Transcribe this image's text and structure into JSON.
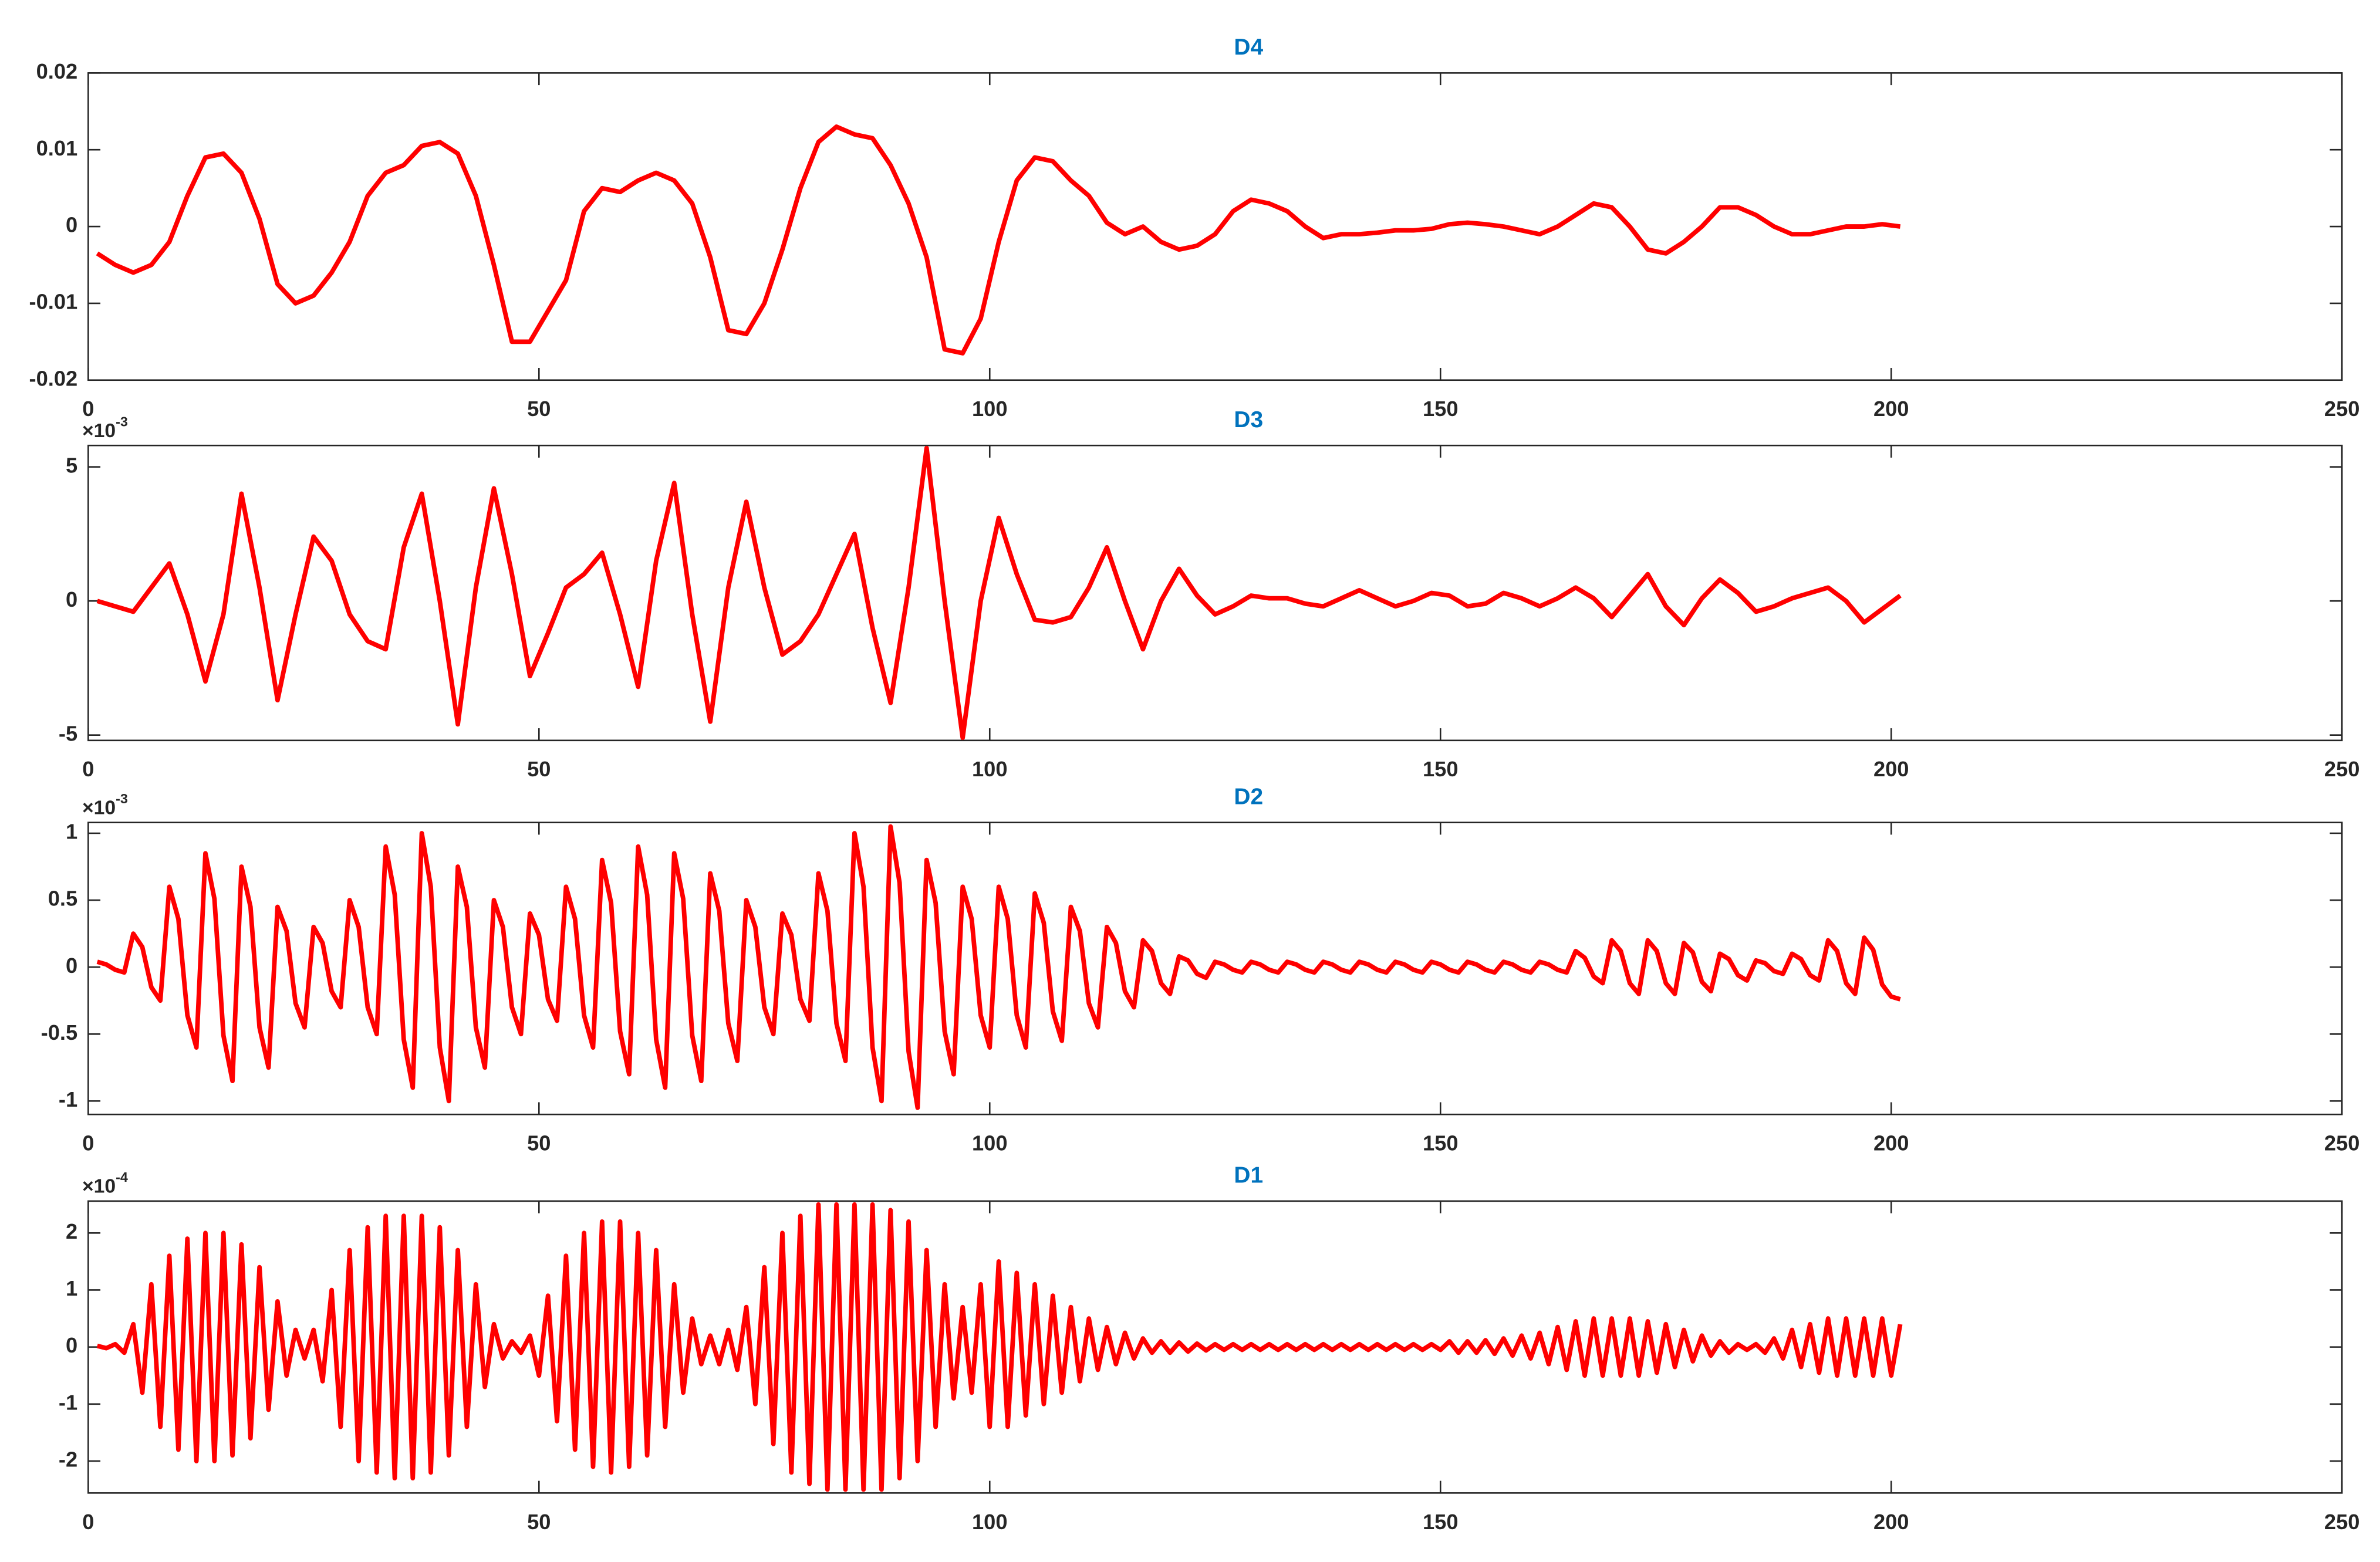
{
  "chart_data": [
    {
      "type": "line",
      "title": "D4",
      "color": "#ff0000",
      "x": [
        1,
        3,
        5,
        7,
        9,
        11,
        13,
        15,
        17,
        19,
        21,
        23,
        25,
        27,
        29,
        31,
        33,
        35,
        37,
        39,
        41,
        43,
        45,
        47,
        49,
        51,
        53,
        55,
        57,
        59,
        61,
        63,
        65,
        67,
        69,
        71,
        73,
        75,
        77,
        79,
        81,
        83,
        85,
        87,
        89,
        91,
        93,
        95,
        97,
        99,
        101,
        103,
        105,
        107,
        109,
        111,
        113,
        115,
        117,
        119,
        121,
        123,
        125,
        127,
        129,
        131,
        133,
        135,
        137,
        139,
        141,
        143,
        145,
        147,
        149,
        151,
        153,
        155,
        157,
        159,
        161,
        163,
        165,
        167,
        169,
        171,
        173,
        175,
        177,
        179,
        181,
        183,
        185,
        187,
        189,
        191,
        193,
        195,
        197,
        199,
        201
      ],
      "values": [
        -0.0035,
        -0.005,
        -0.006,
        -0.005,
        -0.002,
        0.004,
        0.009,
        0.0095,
        0.007,
        0.001,
        -0.0075,
        -0.01,
        -0.009,
        -0.006,
        -0.002,
        0.004,
        0.007,
        0.008,
        0.0105,
        0.011,
        0.0095,
        0.004,
        -0.005,
        -0.015,
        -0.015,
        -0.011,
        -0.007,
        0.002,
        0.005,
        0.0045,
        0.006,
        0.007,
        0.006,
        0.003,
        -0.004,
        -0.0135,
        -0.014,
        -0.01,
        -0.003,
        0.005,
        0.011,
        0.013,
        0.012,
        0.0115,
        0.008,
        0.003,
        -0.004,
        -0.016,
        -0.0165,
        -0.012,
        -0.002,
        0.006,
        0.009,
        0.0085,
        0.006,
        0.004,
        0.0005,
        -0.001,
        0,
        -0.002,
        -0.003,
        -0.0025,
        -0.001,
        0.002,
        0.0035,
        0.003,
        0.002,
        0,
        -0.0015,
        -0.001,
        -0.001,
        -0.0008,
        -0.0005,
        -0.0005,
        -0.0003,
        0.0003,
        0.0005,
        0.0003,
        0,
        -0.0005,
        -0.001,
        0,
        0.0015,
        0.003,
        0.0025,
        0,
        -0.003,
        -0.0035,
        -0.002,
        0,
        0.0025,
        0.0025,
        0.0015,
        0,
        -0.001,
        -0.001,
        -0.0005,
        0,
        0,
        0.0003,
        0
      ],
      "xlim": [
        0,
        250
      ],
      "xticks": [
        0,
        50,
        100,
        150,
        200,
        250
      ],
      "ylim": [
        -0.02,
        0.02
      ],
      "yticks": [
        -0.02,
        -0.01,
        0,
        0.01,
        0.02
      ]
    },
    {
      "type": "line",
      "title": "D3",
      "color": "#ff0000",
      "y_multiplier": {
        "base": "×10",
        "exponent": "-3"
      },
      "x": [
        1,
        3,
        5,
        7,
        9,
        11,
        13,
        15,
        17,
        19,
        21,
        23,
        25,
        27,
        29,
        31,
        33,
        35,
        37,
        39,
        41,
        43,
        45,
        47,
        49,
        51,
        53,
        55,
        57,
        59,
        61,
        63,
        65,
        67,
        69,
        71,
        73,
        75,
        77,
        79,
        81,
        83,
        85,
        87,
        89,
        91,
        93,
        95,
        97,
        99,
        101,
        103,
        105,
        107,
        109,
        111,
        113,
        115,
        117,
        119,
        121,
        123,
        125,
        127,
        129,
        131,
        133,
        135,
        137,
        139,
        141,
        143,
        145,
        147,
        149,
        151,
        153,
        155,
        157,
        159,
        161,
        163,
        165,
        167,
        169,
        171,
        173,
        175,
        177,
        179,
        181,
        183,
        185,
        187,
        189,
        191,
        193,
        195,
        197,
        199,
        201
      ],
      "values": [
        0,
        -0.2,
        -0.4,
        0.5,
        1.4,
        -0.5,
        -3.0,
        -0.5,
        4.0,
        0.5,
        -3.7,
        -0.5,
        2.4,
        1.5,
        -0.5,
        -1.5,
        -1.8,
        2.0,
        4.0,
        0,
        -4.6,
        0.5,
        4.2,
        1.0,
        -2.8,
        -1.2,
        0.5,
        1.0,
        1.8,
        -0.5,
        -3.2,
        1.5,
        4.4,
        -0.5,
        -4.5,
        0.5,
        3.7,
        0.5,
        -2.0,
        -1.5,
        -0.5,
        1.0,
        2.5,
        -1.0,
        -3.8,
        0.5,
        5.7,
        0,
        -5.1,
        0,
        3.1,
        1.0,
        -0.7,
        -0.8,
        -0.6,
        0.5,
        2.0,
        0,
        -1.8,
        0,
        1.2,
        0.2,
        -0.5,
        -0.2,
        0.2,
        0.1,
        0.1,
        -0.1,
        -0.2,
        0.1,
        0.4,
        0.1,
        -0.2,
        0,
        0.3,
        0.2,
        -0.2,
        -0.1,
        0.3,
        0.1,
        -0.2,
        0.1,
        0.5,
        0.1,
        -0.6,
        0.2,
        1.0,
        -0.2,
        -0.9,
        0.1,
        0.8,
        0.3,
        -0.4,
        -0.2,
        0.1,
        0.3,
        0.5,
        0,
        -0.8,
        -0.3,
        0.2
      ],
      "xlim": [
        0,
        250
      ],
      "xticks": [
        0,
        50,
        100,
        150,
        200,
        250
      ],
      "ylim": [
        -5.2,
        5.8
      ],
      "yticks": [
        -5,
        0,
        5
      ]
    },
    {
      "type": "line",
      "title": "D2",
      "color": "#ff0000",
      "y_multiplier": {
        "base": "×10",
        "exponent": "-3"
      },
      "x": [
        1,
        2,
        3,
        4,
        5,
        6,
        7,
        8,
        9,
        10,
        11,
        12,
        13,
        14,
        15,
        16,
        17,
        18,
        19,
        20,
        21,
        22,
        23,
        24,
        25,
        26,
        27,
        28,
        29,
        30,
        31,
        32,
        33,
        34,
        35,
        36,
        37,
        38,
        39,
        40,
        41,
        42,
        43,
        44,
        45,
        46,
        47,
        48,
        49,
        50,
        51,
        52,
        53,
        54,
        55,
        56,
        57,
        58,
        59,
        60,
        61,
        62,
        63,
        64,
        65,
        66,
        67,
        68,
        69,
        70,
        71,
        72,
        73,
        74,
        75,
        76,
        77,
        78,
        79,
        80,
        81,
        82,
        83,
        84,
        85,
        86,
        87,
        88,
        89,
        90,
        91,
        92,
        93,
        94,
        95,
        96,
        97,
        98,
        99,
        100,
        101,
        102,
        103,
        104,
        105,
        106,
        107,
        108,
        109,
        110,
        111,
        112,
        113,
        114,
        115,
        116,
        117,
        118,
        119,
        120,
        121,
        122,
        123,
        124,
        125,
        126,
        127,
        128,
        129,
        130,
        131,
        132,
        133,
        134,
        135,
        136,
        137,
        138,
        139,
        140,
        141,
        142,
        143,
        144,
        145,
        146,
        147,
        148,
        149,
        150,
        151,
        152,
        153,
        154,
        155,
        156,
        157,
        158,
        159,
        160,
        161,
        162,
        163,
        164,
        165,
        166,
        167,
        168,
        169,
        170,
        171,
        172,
        173,
        174,
        175,
        176,
        177,
        178,
        179,
        180,
        181,
        182,
        183,
        184,
        185,
        186,
        187,
        188,
        189,
        190,
        191,
        192,
        193,
        194,
        195,
        196,
        197,
        198,
        199,
        200,
        201
      ],
      "values": [
        0.04,
        0.02,
        -0.02,
        -0.04,
        0.25,
        0.15,
        -0.15,
        -0.25,
        0.6,
        0.36,
        -0.36,
        -0.6,
        0.85,
        0.51,
        -0.51,
        -0.85,
        0.75,
        0.45,
        -0.45,
        -0.75,
        0.45,
        0.27,
        -0.27,
        -0.45,
        0.3,
        0.18,
        -0.18,
        -0.3,
        0.5,
        0.3,
        -0.3,
        -0.5,
        0.9,
        0.54,
        -0.54,
        -0.9,
        1,
        0.6,
        -0.6,
        -1,
        0.75,
        0.45,
        -0.45,
        -0.75,
        0.5,
        0.3,
        -0.3,
        -0.5,
        0.4,
        0.24,
        -0.24,
        -0.4,
        0.6,
        0.36,
        -0.36,
        -0.6,
        0.8,
        0.48,
        -0.48,
        -0.8,
        0.9,
        0.54,
        -0.54,
        -0.9,
        0.85,
        0.51,
        -0.51,
        -0.85,
        0.7,
        0.42,
        -0.42,
        -0.7,
        0.5,
        0.3,
        -0.3,
        -0.5,
        0.4,
        0.24,
        -0.24,
        -0.4,
        0.7,
        0.42,
        -0.42,
        -0.7,
        1,
        0.6,
        -0.6,
        -1,
        1.05,
        0.63,
        -0.63,
        -1.05,
        0.8,
        0.48,
        -0.48,
        -0.8,
        0.6,
        0.36,
        -0.36,
        -0.6,
        0.6,
        0.36,
        -0.36,
        -0.6,
        0.55,
        0.33,
        -0.33,
        -0.55,
        0.45,
        0.27,
        -0.27,
        -0.45,
        0.3,
        0.18,
        -0.18,
        -0.3,
        0.2,
        0.12,
        -0.12,
        -0.2,
        0.08,
        0.05,
        -0.05,
        -0.08,
        0.04,
        0.02,
        -0.02,
        -0.04,
        0.04,
        0.02,
        -0.02,
        -0.04,
        0.04,
        0.02,
        -0.02,
        -0.04,
        0.04,
        0.02,
        -0.02,
        -0.04,
        0.04,
        0.02,
        -0.02,
        -0.04,
        0.04,
        0.02,
        -0.02,
        -0.04,
        0.04,
        0.02,
        -0.02,
        -0.04,
        0.04,
        0.02,
        -0.02,
        -0.04,
        0.04,
        0.02,
        -0.02,
        -0.04,
        0.04,
        0.02,
        -0.02,
        -0.04,
        0.12,
        0.07,
        -0.07,
        -0.12,
        0.2,
        0.12,
        -0.12,
        -0.2,
        0.2,
        0.12,
        -0.12,
        -0.2,
        0.18,
        0.11,
        -0.11,
        -0.18,
        0.1,
        0.06,
        -0.06,
        -0.1,
        0.05,
        0.03,
        -0.03,
        -0.05,
        0.1,
        0.06,
        -0.06,
        -0.1,
        0.2,
        0.12,
        -0.12,
        -0.2,
        0.22,
        0.13,
        -0.13,
        -0.22,
        -0.24
      ],
      "xlim": [
        0,
        250
      ],
      "xticks": [
        0,
        50,
        100,
        150,
        200,
        250
      ],
      "ylim": [
        -1.1,
        1.08
      ],
      "yticks": [
        -1,
        -0.5,
        0,
        0.5,
        1
      ]
    },
    {
      "type": "line",
      "title": "D1",
      "color": "#ff0000",
      "y_multiplier": {
        "base": "×10",
        "exponent": "-4"
      },
      "x": [
        1,
        2,
        3,
        4,
        5,
        6,
        7,
        8,
        9,
        10,
        11,
        12,
        13,
        14,
        15,
        16,
        17,
        18,
        19,
        20,
        21,
        22,
        23,
        24,
        25,
        26,
        27,
        28,
        29,
        30,
        31,
        32,
        33,
        34,
        35,
        36,
        37,
        38,
        39,
        40,
        41,
        42,
        43,
        44,
        45,
        46,
        47,
        48,
        49,
        50,
        51,
        52,
        53,
        54,
        55,
        56,
        57,
        58,
        59,
        60,
        61,
        62,
        63,
        64,
        65,
        66,
        67,
        68,
        69,
        70,
        71,
        72,
        73,
        74,
        75,
        76,
        77,
        78,
        79,
        80,
        81,
        82,
        83,
        84,
        85,
        86,
        87,
        88,
        89,
        90,
        91,
        92,
        93,
        94,
        95,
        96,
        97,
        98,
        99,
        100,
        101,
        102,
        103,
        104,
        105,
        106,
        107,
        108,
        109,
        110,
        111,
        112,
        113,
        114,
        115,
        116,
        117,
        118,
        119,
        120,
        121,
        122,
        123,
        124,
        125,
        126,
        127,
        128,
        129,
        130,
        131,
        132,
        133,
        134,
        135,
        136,
        137,
        138,
        139,
        140,
        141,
        142,
        143,
        144,
        145,
        146,
        147,
        148,
        149,
        150,
        151,
        152,
        153,
        154,
        155,
        156,
        157,
        158,
        159,
        160,
        161,
        162,
        163,
        164,
        165,
        166,
        167,
        168,
        169,
        170,
        171,
        172,
        173,
        174,
        175,
        176,
        177,
        178,
        179,
        180,
        181,
        182,
        183,
        184,
        185,
        186,
        187,
        188,
        189,
        190,
        191,
        192,
        193,
        194,
        195,
        196,
        197,
        198,
        199,
        200,
        201
      ],
      "values": [
        0.02,
        -0.02,
        0.05,
        -0.1,
        0.4,
        -0.8,
        1.1,
        -1.4,
        1.6,
        -1.8,
        1.9,
        -2.0,
        2.0,
        -2.0,
        2.0,
        -1.9,
        1.8,
        -1.6,
        1.4,
        -1.1,
        0.8,
        -0.5,
        0.3,
        -0.2,
        0.3,
        -0.6,
        1.0,
        -1.4,
        1.7,
        -2.0,
        2.1,
        -2.2,
        2.3,
        -2.3,
        2.3,
        -2.3,
        2.3,
        -2.2,
        2.1,
        -1.9,
        1.7,
        -1.4,
        1.1,
        -0.7,
        0.4,
        -0.2,
        0.1,
        -0.1,
        0.2,
        -0.5,
        0.9,
        -1.3,
        1.6,
        -1.8,
        2.0,
        -2.1,
        2.2,
        -2.2,
        2.2,
        -2.1,
        2.0,
        -1.9,
        1.7,
        -1.4,
        1.1,
        -0.8,
        0.5,
        -0.3,
        0.2,
        -0.3,
        0.3,
        -0.4,
        0.7,
        -1.0,
        1.4,
        -1.7,
        2.0,
        -2.2,
        2.3,
        -2.4,
        2.5,
        -2.5,
        2.5,
        -2.5,
        2.5,
        -2.5,
        2.5,
        -2.5,
        2.4,
        -2.3,
        2.2,
        -2.0,
        1.7,
        -1.4,
        1.1,
        -0.9,
        0.7,
        -0.8,
        1.1,
        -1.4,
        1.5,
        -1.4,
        1.3,
        -1.2,
        1.1,
        -1.0,
        0.9,
        -0.8,
        0.7,
        -0.6,
        0.5,
        -0.4,
        0.35,
        -0.3,
        0.25,
        -0.2,
        0.15,
        -0.1,
        0.1,
        -0.1,
        0.08,
        -0.08,
        0.06,
        -0.06,
        0.05,
        -0.05,
        0.05,
        -0.05,
        0.05,
        -0.05,
        0.05,
        -0.05,
        0.05,
        -0.05,
        0.05,
        -0.05,
        0.05,
        -0.05,
        0.05,
        -0.05,
        0.05,
        -0.05,
        0.05,
        -0.05,
        0.05,
        -0.05,
        0.05,
        -0.05,
        0.05,
        -0.05,
        0.1,
        -0.1,
        0.1,
        -0.1,
        0.12,
        -0.12,
        0.15,
        -0.15,
        0.2,
        -0.2,
        0.25,
        -0.3,
        0.35,
        -0.4,
        0.45,
        -0.5,
        0.5,
        -0.5,
        0.5,
        -0.5,
        0.5,
        -0.5,
        0.45,
        -0.45,
        0.4,
        -0.35,
        0.3,
        -0.25,
        0.2,
        -0.15,
        0.1,
        -0.1,
        0.05,
        -0.05,
        0.05,
        -0.1,
        0.15,
        -0.2,
        0.3,
        -0.35,
        0.4,
        -0.45,
        0.5,
        -0.5,
        0.5,
        -0.5,
        0.5,
        -0.5,
        0.5,
        -0.5,
        0.4
      ],
      "xlim": [
        0,
        250
      ],
      "xticks": [
        0,
        50,
        100,
        150,
        200,
        250
      ],
      "ylim": [
        -2.56,
        2.56
      ],
      "yticks": [
        -2,
        -1,
        0,
        1,
        2
      ]
    }
  ]
}
